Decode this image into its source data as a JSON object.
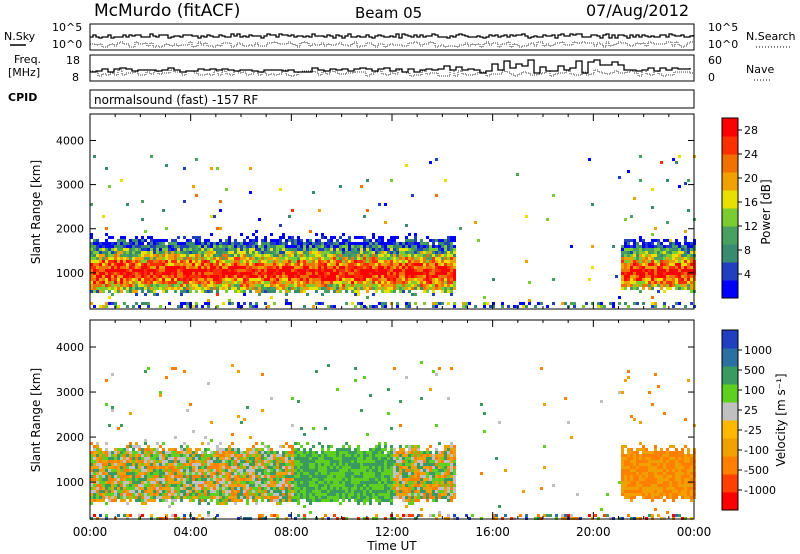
{
  "header": {
    "station": "McMurdo (fitACF)",
    "beam": "Beam 05",
    "date": "07/Aug/2012"
  },
  "strip_labels": {
    "nsky": "N.Sky",
    "freq_line1": "Freq.",
    "freq_line2": "[MHz]",
    "cpid": "CPID",
    "nsearch": "N.Search",
    "nave": "Nave",
    "cpid_text": "normalsound (fast) -157 RF"
  },
  "strip_ticks": {
    "noise_left": [
      "10^5",
      "10^0"
    ],
    "noise_right": [
      "10^5",
      "10^0"
    ],
    "freq_left": [
      "18",
      "8"
    ],
    "freq_right": [
      "60",
      "0"
    ]
  },
  "colors": {
    "power_scale": [
      "#0000ff",
      "#2040c0",
      "#3a8a70",
      "#4aa060",
      "#7acc30",
      "#e8e000",
      "#f0a000",
      "#f07000",
      "#ff3000",
      "#ff0000"
    ],
    "velocity_scale": [
      "#ff0000",
      "#ff4000",
      "#ff8000",
      "#f0a000",
      "#ffb800",
      "#c0c0c0",
      "#60d020",
      "#3a9a60",
      "#2a70a0",
      "#2040c0"
    ],
    "ground_scatter": "#808080"
  },
  "chart_data": [
    {
      "type": "heatmap",
      "name": "power",
      "xlabel": "Time UT",
      "ylabel": "Slant Range [km]",
      "x_ticks": [
        "00:00",
        "04:00",
        "08:00",
        "12:00",
        "16:00",
        "20:00",
        "00:00"
      ],
      "x_range_hours": [
        0,
        24
      ],
      "y_ticks": [
        "1000",
        "2000",
        "3000",
        "4000"
      ],
      "y_range_km": [
        180,
        4600
      ],
      "colorbar": {
        "label": "Power [dB]",
        "ticks": [
          "4",
          "8",
          "12",
          "16",
          "20",
          "24",
          "28"
        ],
        "range": [
          0,
          30
        ]
      },
      "echo_bands": [
        {
          "start_h": 0.0,
          "end_h": 14.5,
          "low_km": 600,
          "high_km": 1800
        },
        {
          "start_h": 21.0,
          "end_h": 24.0,
          "low_km": 650,
          "high_km": 1750
        }
      ],
      "grid": false
    },
    {
      "type": "heatmap",
      "name": "velocity",
      "xlabel": "Time UT",
      "ylabel": "Slant Range [km]",
      "x_ticks": [
        "00:00",
        "04:00",
        "08:00",
        "12:00",
        "16:00",
        "20:00",
        "00:00"
      ],
      "x_range_hours": [
        0,
        24
      ],
      "y_ticks": [
        "1000",
        "2000",
        "3000",
        "4000"
      ],
      "y_range_km": [
        180,
        4600
      ],
      "colorbar": {
        "label": "Velocity [m s⁻¹]",
        "ticks": [
          "1000",
          "500",
          "100",
          "25",
          "-25",
          "-100",
          "-500",
          "-1000"
        ]
      },
      "echo_bands": [
        {
          "start_h": 0.0,
          "end_h": 14.5,
          "low_km": 600,
          "high_km": 1800
        },
        {
          "start_h": 21.0,
          "end_h": 24.0,
          "low_km": 650,
          "high_km": 1750
        }
      ],
      "grid": false
    }
  ]
}
